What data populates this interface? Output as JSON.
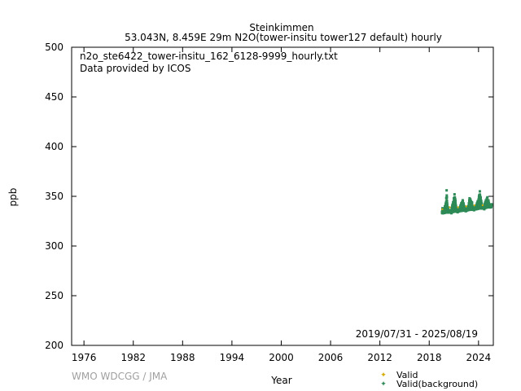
{
  "chart_data": {
    "type": "scatter",
    "title": "Steinkimmen",
    "subtitle": "53.043N, 8.459E 29m    N2O(tower-insitu tower127 default) hourly",
    "file_label": "n2o_ste6422_tower-insitu_162_6128-9999_hourly.txt",
    "provider_label": "Data provided by ICOS",
    "date_range_label": "2019/07/31 - 2025/08/19",
    "xlabel": "Year",
    "ylabel": "ppb",
    "xlim": [
      1974.5,
      2025.8
    ],
    "ylim": [
      200,
      500
    ],
    "x_ticks": [
      1976,
      1982,
      1988,
      1994,
      2000,
      2006,
      2012,
      2018,
      2024
    ],
    "y_ticks": [
      200,
      250,
      300,
      350,
      400,
      450,
      500
    ],
    "grid": false,
    "legend_position": "bottom-right",
    "series": [
      {
        "name": "Valid",
        "color": "#d4aa00",
        "x": [
          2019.6,
          2020.5,
          2021.5,
          2022.5,
          2023.5,
          2024.5
        ],
        "y": [
          337,
          339,
          339,
          340,
          341,
          341
        ]
      },
      {
        "name": "Valid(background)",
        "color": "#2e8b57",
        "x": [
          2019.58,
          2019.66,
          2019.75,
          2019.83,
          2019.91,
          2020.0,
          2020.08,
          2020.12,
          2020.16,
          2020.25,
          2020.33,
          2020.41,
          2020.5,
          2020.58,
          2020.66,
          2020.75,
          2020.83,
          2020.91,
          2021.0,
          2021.08,
          2021.16,
          2021.25,
          2021.33,
          2021.41,
          2021.5,
          2021.58,
          2021.66,
          2021.75,
          2021.83,
          2021.91,
          2022.0,
          2022.08,
          2022.16,
          2022.25,
          2022.33,
          2022.41,
          2022.5,
          2022.58,
          2022.66,
          2022.75,
          2022.83,
          2022.91,
          2023.0,
          2023.08,
          2023.16,
          2023.25,
          2023.33,
          2023.41,
          2023.5,
          2023.58,
          2023.66,
          2023.75,
          2023.83,
          2023.91,
          2024.0,
          2024.08,
          2024.16,
          2024.25,
          2024.33,
          2024.41,
          2024.5,
          2024.58,
          2024.66,
          2024.75,
          2024.83,
          2024.91,
          2025.0,
          2025.08,
          2025.16,
          2025.25,
          2025.33,
          2025.41,
          2025.5,
          2025.58,
          2019.62,
          2019.95,
          2020.2,
          2020.45,
          2020.7,
          2020.95,
          2021.2,
          2021.45,
          2021.7,
          2021.95,
          2022.2,
          2022.45,
          2022.7,
          2022.95,
          2023.2,
          2023.45,
          2023.7,
          2023.95,
          2024.2,
          2024.45,
          2024.7,
          2024.95,
          2025.2,
          2025.45
        ],
        "y": [
          334,
          333,
          335,
          337,
          340,
          342,
          348,
          356,
          345,
          339,
          336,
          335,
          336,
          334,
          336,
          338,
          341,
          344,
          348,
          352,
          347,
          340,
          337,
          336,
          336,
          335,
          337,
          339,
          341,
          343,
          344,
          346,
          343,
          340,
          338,
          337,
          337,
          336,
          338,
          340,
          343,
          348,
          347,
          345,
          342,
          340,
          339,
          338,
          338,
          337,
          339,
          341,
          343,
          345,
          346,
          351,
          355,
          349,
          345,
          341,
          339,
          339,
          340,
          342,
          344,
          346,
          347,
          349,
          345,
          343,
          341,
          340,
          341,
          342,
          338,
          336,
          340,
          334,
          333,
          339,
          343,
          334,
          336,
          338,
          341,
          335,
          336,
          340,
          344,
          336,
          337,
          341,
          347,
          338,
          337,
          342,
          346,
          339
        ]
      }
    ]
  },
  "footer": {
    "credit": "WMO WDCGG / JMA"
  },
  "colors": {
    "axis": "#000000",
    "credit": "#a0a0a0"
  }
}
